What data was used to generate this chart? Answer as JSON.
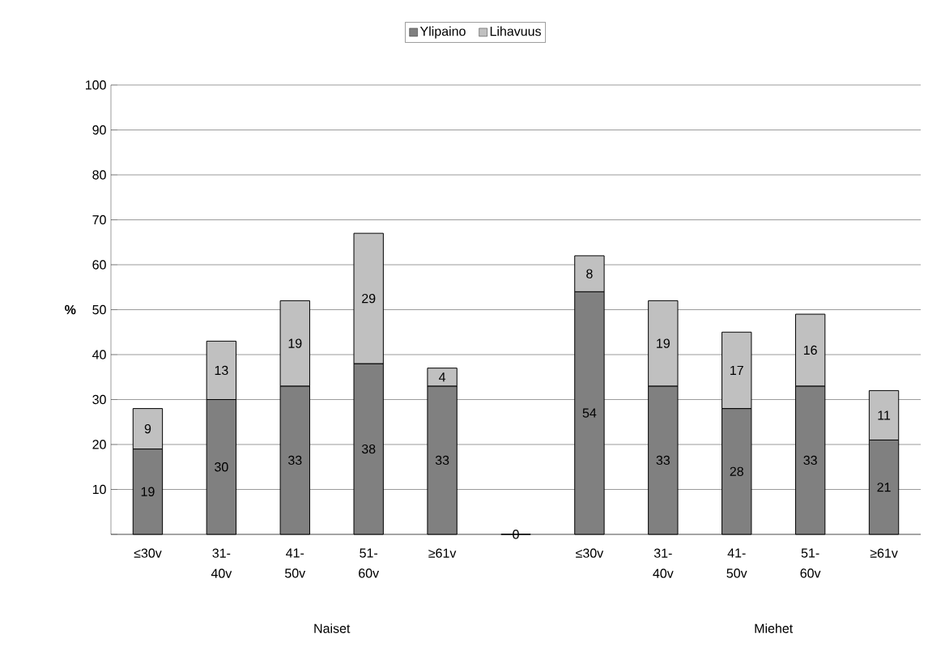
{
  "chart_data": {
    "type": "bar",
    "stacked": true,
    "ylabel": "%",
    "categories": [
      "≤30v",
      "31-40v",
      "41-50v",
      "51-60v",
      "≥61v",
      null,
      "≤30v",
      "31-40v",
      "41-50v",
      "51-60v",
      "≥61v"
    ],
    "series": [
      {
        "name": "Ylipaino",
        "color": "#808080",
        "values": [
          19,
          30,
          33,
          38,
          33,
          0,
          54,
          33,
          28,
          33,
          21
        ]
      },
      {
        "name": "Lihavuus",
        "color": "#c0c0c0",
        "values": [
          9,
          13,
          19,
          29,
          4,
          null,
          8,
          19,
          17,
          16,
          11
        ]
      }
    ],
    "ylim": [
      0,
      100
    ],
    "yticks": [
      {
        "value": 0,
        "label": null
      },
      10,
      20,
      30,
      40,
      50,
      60,
      70,
      80,
      90,
      100
    ],
    "grid": "y",
    "legend": "top",
    "data_labels": true,
    "annotations": [
      "Naiset",
      "Miehet"
    ]
  }
}
